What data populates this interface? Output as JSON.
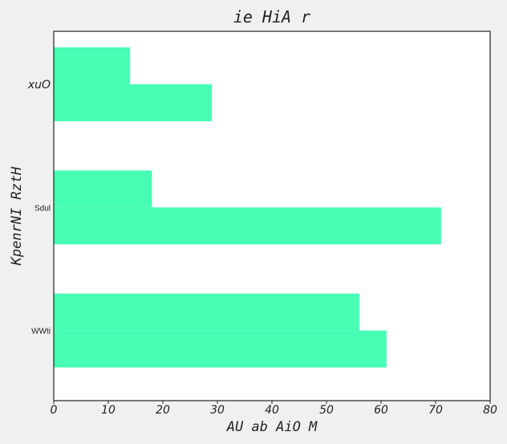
{
  "chart_data": {
    "type": "bar",
    "orientation": "horizontal",
    "title": "ie HiA r",
    "xlabel": "AU  ab AiO M",
    "ylabel": "KpenrNI RztH",
    "categories": [
      "xuO",
      "Sdul",
      "WWti"
    ],
    "series": [
      {
        "values": [
          14,
          18,
          56
        ]
      },
      {
        "values": [
          29,
          71,
          61
        ]
      }
    ],
    "xlim": [
      0,
      80
    ],
    "xticks": [
      0,
      10,
      20,
      30,
      40,
      50,
      60,
      70,
      80
    ],
    "grid": false,
    "bar_color": "#46ffb4"
  }
}
